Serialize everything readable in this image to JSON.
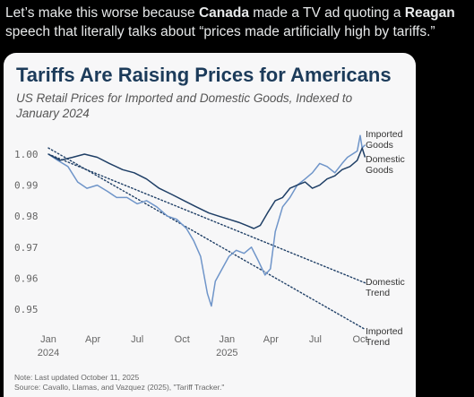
{
  "post": {
    "part1": "Let’s make this worse because ",
    "bold1": "Canada",
    "part2": " made a TV ad quoting a ",
    "bold2": "Reagan",
    "part3": " speech that literally talks about “prices made artificially high by tariffs.”"
  },
  "chart_data": {
    "type": "line",
    "title": "Tariffs Are Raising Prices for Americans",
    "subtitle": "US Retail Prices for Imported and Domestic Goods, Indexed to January 2024",
    "xlabel": "",
    "ylabel": "",
    "ylim": [
      0.943,
      1.006
    ],
    "y_ticks": [
      1.0,
      0.99,
      0.98,
      0.97,
      0.96,
      0.95
    ],
    "y_tick_labels": [
      "1.00",
      "0.99",
      "0.98",
      "0.97",
      "0.96",
      "0.95"
    ],
    "x_ticks": [
      {
        "date": "2024-01-01",
        "label": "Jan",
        "sub": "2024"
      },
      {
        "date": "2024-04-01",
        "label": "Apr",
        "sub": ""
      },
      {
        "date": "2024-07-01",
        "label": "Jul",
        "sub": ""
      },
      {
        "date": "2024-10-01",
        "label": "Oct",
        "sub": ""
      },
      {
        "date": "2025-01-01",
        "label": "Jan",
        "sub": "2025"
      },
      {
        "date": "2025-04-01",
        "label": "Apr",
        "sub": ""
      },
      {
        "date": "2025-07-01",
        "label": "Jul",
        "sub": ""
      },
      {
        "date": "2025-10-01",
        "label": "Oct",
        "sub": ""
      }
    ],
    "grid": false,
    "series": [
      {
        "name": "Imported Goods",
        "style": "solid",
        "color": "#6f95c9",
        "x": [
          "2024-01-01",
          "2024-01-20",
          "2024-02-10",
          "2024-03-01",
          "2024-03-20",
          "2024-04-10",
          "2024-05-01",
          "2024-05-20",
          "2024-06-10",
          "2024-07-01",
          "2024-07-20",
          "2024-08-10",
          "2024-09-01",
          "2024-09-20",
          "2024-10-10",
          "2024-10-25",
          "2024-11-08",
          "2024-11-22",
          "2024-11-30",
          "2024-12-08",
          "2024-12-22",
          "2025-01-05",
          "2025-01-20",
          "2025-02-05",
          "2025-02-20",
          "2025-03-05",
          "2025-03-20",
          "2025-03-31",
          "2025-04-10",
          "2025-04-25",
          "2025-05-10",
          "2025-05-25",
          "2025-06-10",
          "2025-06-25",
          "2025-07-10",
          "2025-07-25",
          "2025-08-10",
          "2025-08-25",
          "2025-09-05",
          "2025-09-15",
          "2025-09-25",
          "2025-10-01",
          "2025-10-05",
          "2025-10-11"
        ],
        "values": [
          1.0,
          0.998,
          0.996,
          0.991,
          0.989,
          0.99,
          0.988,
          0.986,
          0.986,
          0.984,
          0.985,
          0.983,
          0.98,
          0.979,
          0.976,
          0.972,
          0.967,
          0.955,
          0.951,
          0.959,
          0.963,
          0.967,
          0.969,
          0.968,
          0.97,
          0.966,
          0.961,
          0.963,
          0.975,
          0.983,
          0.986,
          0.99,
          0.992,
          0.994,
          0.997,
          0.996,
          0.994,
          0.997,
          0.999,
          1.0,
          1.001,
          1.006,
          1.002,
          1.003
        ]
      },
      {
        "name": "Domestic Goods",
        "style": "solid",
        "color": "#1f3f66",
        "x": [
          "2024-01-01",
          "2024-01-25",
          "2024-02-20",
          "2024-03-15",
          "2024-04-10",
          "2024-05-05",
          "2024-06-01",
          "2024-06-25",
          "2024-07-20",
          "2024-08-15",
          "2024-09-10",
          "2024-10-05",
          "2024-10-30",
          "2024-11-25",
          "2024-12-15",
          "2025-01-05",
          "2025-01-25",
          "2025-02-10",
          "2025-02-25",
          "2025-03-10",
          "2025-03-25",
          "2025-04-10",
          "2025-04-25",
          "2025-05-10",
          "2025-05-25",
          "2025-06-10",
          "2025-06-25",
          "2025-07-10",
          "2025-07-25",
          "2025-08-10",
          "2025-08-25",
          "2025-09-10",
          "2025-09-25",
          "2025-10-05",
          "2025-10-11"
        ],
        "values": [
          1.0,
          0.998,
          0.999,
          1.0,
          0.999,
          0.997,
          0.995,
          0.994,
          0.992,
          0.989,
          0.987,
          0.985,
          0.983,
          0.981,
          0.98,
          0.979,
          0.978,
          0.977,
          0.976,
          0.977,
          0.981,
          0.985,
          0.986,
          0.989,
          0.99,
          0.991,
          0.989,
          0.99,
          0.992,
          0.993,
          0.995,
          0.996,
          0.998,
          1.002,
          0.999
        ]
      },
      {
        "name": "Domestic Trend",
        "style": "dotted",
        "color": "#1f3f66",
        "x": [
          "2024-01-01",
          "2025-10-11"
        ],
        "values": [
          1.0,
          0.9585
        ]
      },
      {
        "name": "Imported Trend",
        "style": "dotted",
        "color": "#1f3f66",
        "x": [
          "2024-01-01",
          "2025-10-11"
        ],
        "values": [
          1.002,
          0.9435
        ]
      }
    ],
    "series_labels": [
      {
        "name": "Imported Goods",
        "lines": [
          "Imported",
          "Goods"
        ]
      },
      {
        "name": "Domestic Goods",
        "lines": [
          "Domestic",
          "Goods"
        ]
      },
      {
        "name": "Domestic Trend",
        "lines": [
          "Domestic",
          "Trend"
        ]
      },
      {
        "name": "Imported Trend",
        "lines": [
          "Imported",
          "Trend"
        ]
      }
    ],
    "notes": [
      "Note: Last updated October 11, 2025",
      "Source: Cavallo, Llamas, and Vazquez (2025), \"Tariff Tracker.\""
    ]
  }
}
